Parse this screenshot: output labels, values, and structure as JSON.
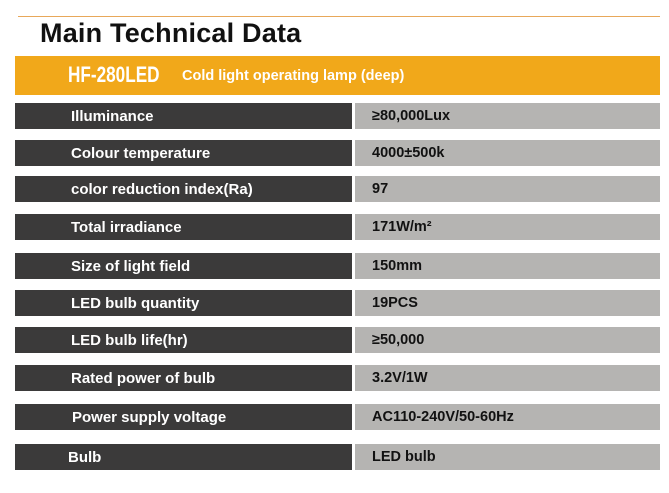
{
  "title": "Main Technical  Data",
  "banner": {
    "model": "HF-280LED",
    "description": "Cold light operating lamp  (deep)"
  },
  "specs": [
    {
      "label": "Illuminance",
      "value": "≥80,000Lux"
    },
    {
      "label": "Colour temperature",
      "value": "4000±500k"
    },
    {
      "label": "color reduction index(Ra)",
      "value": "97"
    },
    {
      "label": "Total irradiance",
      "value": "171W/m²"
    },
    {
      "label": "Size of light field",
      "value": "150mm"
    },
    {
      "label": "LED bulb quantity",
      "value": "19PCS"
    },
    {
      "label": "LED bulb life(hr)",
      "value": "≥50,000"
    },
    {
      "label": "Rated power of bulb",
      "value": "3.2V/1W"
    },
    {
      "label": "Power supply voltage",
      "value": "AC110-240V/50-60Hz"
    },
    {
      "label": "Bulb",
      "value": "LED bulb"
    }
  ]
}
